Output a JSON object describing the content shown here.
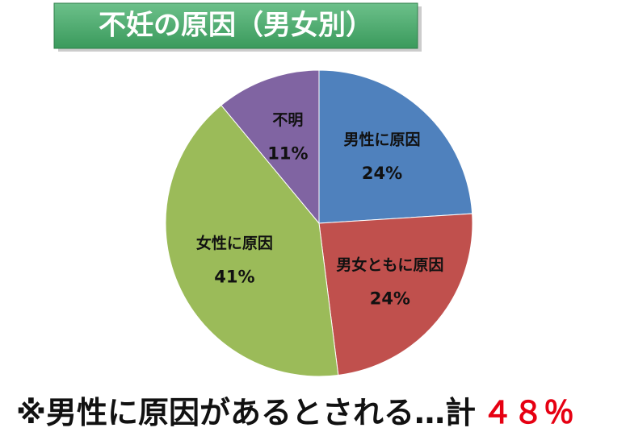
{
  "chart_data": {
    "type": "pie",
    "title": "不妊の原因（男女別）",
    "categories": [
      "男性に原因",
      "男女ともに原因",
      "女性に原因",
      "不明"
    ],
    "values": [
      24,
      24,
      41,
      11
    ],
    "value_labels": [
      "24%",
      "24%",
      "41%",
      "11%"
    ],
    "colors": [
      "#4f81bd",
      "#c0504d",
      "#9bbb59",
      "#8064a2"
    ],
    "annotations": [
      {
        "text": "※男性に原因があるとされる…計",
        "color": "#111111"
      },
      {
        "text": "４８％",
        "color": "#e60012"
      }
    ]
  }
}
